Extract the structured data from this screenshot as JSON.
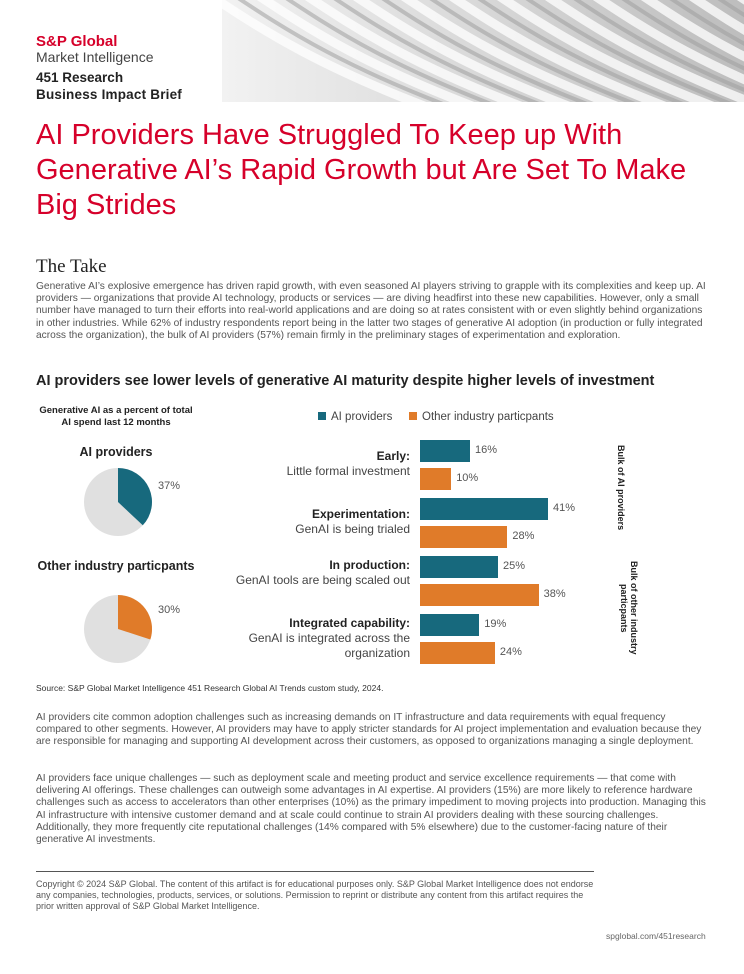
{
  "header": {
    "logo_top": "S&P Global",
    "logo_bottom": "Market Intelligence",
    "brief_line1": "451 Research",
    "brief_line2": "Business Impact Brief"
  },
  "title": "AI Providers Have Struggled To Keep up With Generative AI’s Rapid Growth but Are Set To Make Big Strides",
  "take": {
    "heading": "The Take",
    "body": "Generative AI’s explosive emergence has driven rapid growth, with even seasoned AI players striving to grapple with its complexities and keep up. AI providers — organizations that provide AI technology, products or services — are diving headfirst into these new capabilities. However, only a small number have managed to turn their efforts into real-world applications and are doing so at rates consistent with or even slightly behind organizations in other industries. While 62% of industry respondents report being in the latter two stages of generative AI adoption (in production or fully integrated across the organization), the bulk of AI providers (57%) remain firmly in the preliminary stages of experimentation and exploration."
  },
  "chart_data": {
    "type": "bar",
    "title": "AI providers see lower levels of generative AI maturity despite higher levels of investment",
    "spend_note": "Generative AI as a percent of total AI spend last 12 months",
    "pies": [
      {
        "label": "AI providers",
        "value": 37,
        "value_label": "37%",
        "color": "#17697d"
      },
      {
        "label": "Other industry particpants",
        "value": 30,
        "value_label": "30%",
        "color": "#e07b29"
      }
    ],
    "legend": [
      "AI providers",
      "Other industry particpants"
    ],
    "categories": [
      {
        "bold": "Early:",
        "sub": "Little formal investment"
      },
      {
        "bold": "Experimentation:",
        "sub": "GenAI is being trialed"
      },
      {
        "bold": "In production:",
        "sub": "GenAI tools are being scaled out"
      },
      {
        "bold": "Integrated capability:",
        "sub": "GenAI is integrated across the organization"
      }
    ],
    "series": [
      {
        "name": "AI providers",
        "color": "#17697d",
        "values": [
          16,
          41,
          25,
          19
        ],
        "labels": [
          "16%",
          "41%",
          "25%",
          "19%"
        ]
      },
      {
        "name": "Other industry particpants",
        "color": "#e07b29",
        "values": [
          10,
          28,
          38,
          24
        ],
        "labels": [
          "10%",
          "28%",
          "38%",
          "24%"
        ]
      }
    ],
    "side_labels": [
      "Bulk of AI providers",
      "Bulk of other industry particpants"
    ],
    "xlim": [
      0,
      45
    ],
    "source": "Source: S&P Global Market Intelligence 451 Research Global AI Trends custom study, 2024."
  },
  "body_paragraphs": [
    "AI providers cite common adoption challenges such as increasing demands on IT infrastructure and data requirements with equal frequency compared to other segments. However, AI providers may have to apply stricter standards for AI project implementation and evaluation because they are responsible for managing and supporting AI development across their customers, as opposed to organizations managing a single deployment.",
    "AI providers face unique challenges — such as deployment scale and meeting product and service excellence requirements — that come with delivering AI offerings. These challenges can outweigh some advantages in AI expertise. AI providers (15%) are more likely to reference hardware challenges such as access to accelerators than other enterprises (10%) as the primary impediment to moving projects into production. Managing this AI infrastructure with intensive customer demand and at scale could continue to strain AI providers dealing with these sourcing challenges. Additionally, they more frequently cite reputational challenges (14% compared with 5% elsewhere) due to the customer-facing nature of their generative AI investments."
  ],
  "copyright": "Copyright © 2024 S&P Global. The content of this artifact is for educational purposes only. S&P Global Market Intelligence does not endorse any companies, technologies, products, services, or solutions. Permission to reprint or distribute any content from this artifact requires the prior written approval of S&P Global Market Intelligence.",
  "footer_url": "spglobal.com/451research",
  "colors": {
    "brand_red": "#d6002a",
    "teal": "#17697d",
    "orange": "#e07b29",
    "pie_gray": "#e0e0e0"
  }
}
